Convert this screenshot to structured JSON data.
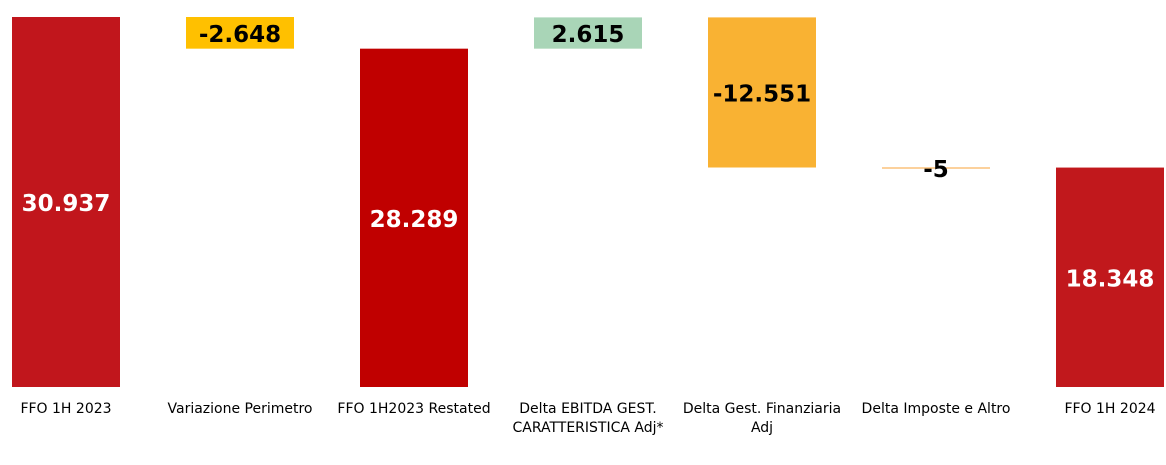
{
  "chart_data": {
    "type": "waterfall",
    "categories": [
      "FFO 1H 2023",
      "Variazione Perimetro",
      "FFO 1H2023 Restated",
      "Delta EBITDA GEST. CARATTERISTICA Adj*",
      "Delta Gest. Finanziaria Adj",
      "Delta Imposte e Altro",
      "FFO 1H 2024"
    ],
    "measure": [
      "absolute",
      "relative",
      "absolute",
      "relative",
      "relative",
      "relative",
      "absolute"
    ],
    "values": [
      30937,
      -2648,
      28289,
      2615,
      -12551,
      -5,
      18348
    ],
    "value_labels": [
      "30.937",
      "-2.648",
      "28.289",
      "2.615",
      "-12.551",
      "-5",
      "18.348"
    ],
    "colors": [
      "#c1161c",
      "#ffc000",
      "#c00000",
      "#a9d5b7",
      "#f9b233",
      "#f9a33a",
      "#c1181c"
    ],
    "label_colors": [
      "#ffffff",
      "#000000",
      "#ffffff",
      "#000000",
      "#000000",
      "#000000",
      "#ffffff"
    ]
  }
}
